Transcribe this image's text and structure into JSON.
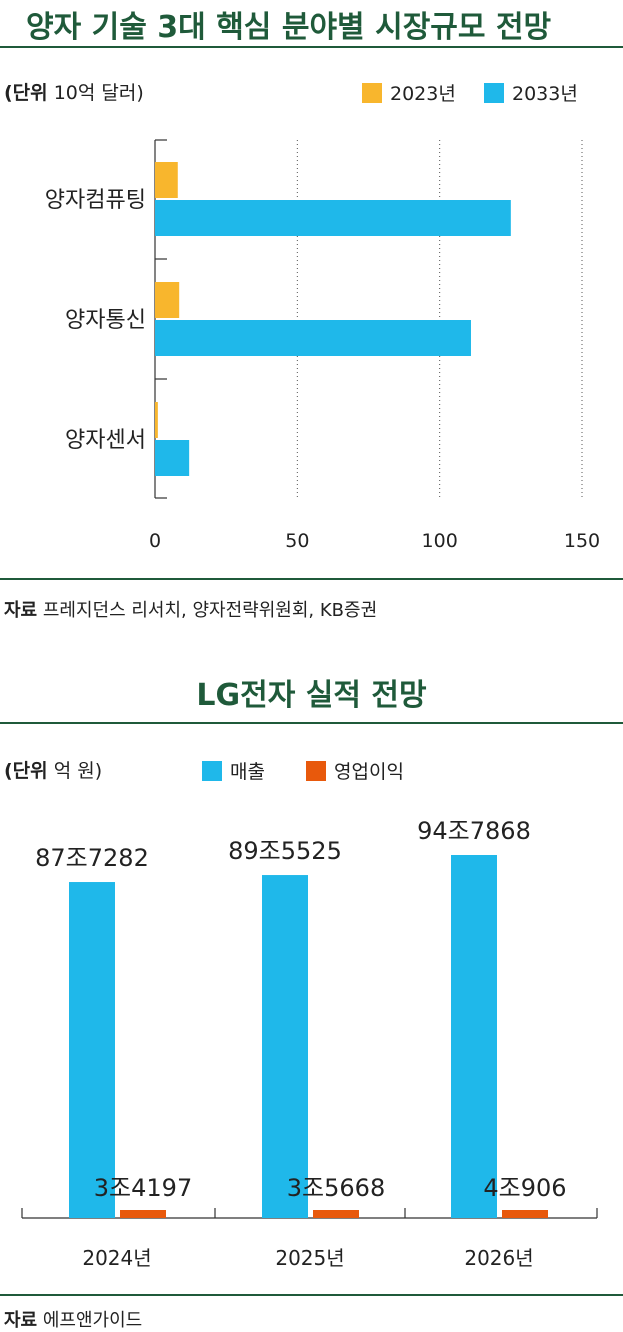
{
  "colors": {
    "y2023": "#f8b62d",
    "y2033": "#1fb8ea",
    "revenue": "#1fb8ea",
    "op": "#e8590c",
    "accent": "#1f5a3a"
  },
  "top": {
    "title": "양자 기술 3대 핵심 분야별 시장규모 전망",
    "unit_bold": "(단위",
    "unit_rest": " 10억 달러)",
    "source_bold": "자료",
    "source_rest": " 프레지던스 리서치, 양자전략위원회, KB증권"
  },
  "bottom": {
    "title": "LG전자 실적 전망",
    "unit_bold": "(단위",
    "unit_rest": " 억 원)",
    "source_bold": "자료",
    "source_rest": " 에프앤가이드"
  },
  "chart_data": [
    {
      "type": "bar",
      "orientation": "horizontal",
      "categories": [
        "양자컴퓨팅",
        "양자통신",
        "양자센서"
      ],
      "series": [
        {
          "name": "2023년",
          "values": [
            8,
            8.5,
            1
          ]
        },
        {
          "name": "2033년",
          "values": [
            125,
            111,
            12
          ]
        }
      ],
      "xlim": [
        0,
        150
      ],
      "xticks": [
        "0",
        "50",
        "100",
        "150"
      ],
      "grid": "vertical dotted",
      "legend": "top-right"
    },
    {
      "type": "bar",
      "categories": [
        "2024년",
        "2025년",
        "2026년"
      ],
      "series": [
        {
          "name": "매출",
          "values": [
            877282,
            895525,
            947868
          ],
          "labels": [
            "87조7282",
            "89조5525",
            "94조7868"
          ]
        },
        {
          "name": "영업이익",
          "values": [
            34197,
            35668,
            40906
          ],
          "labels": [
            "3조4197",
            "3조5668",
            "4조906"
          ]
        }
      ],
      "ylim": [
        0,
        947868
      ],
      "legend": "top-center"
    }
  ]
}
